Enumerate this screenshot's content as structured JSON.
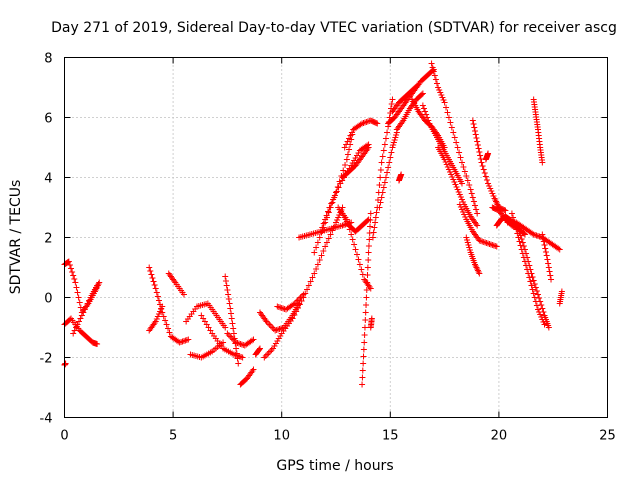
{
  "chart_data": {
    "type": "scatter",
    "title": "Day 271 of 2019, Sidereal Day-to-day VTEC variation (SDTVAR) for receiver ascg",
    "xlabel": "GPS time / hours",
    "ylabel": "SDTVAR / TECUs",
    "xlim": [
      0,
      25
    ],
    "ylim": [
      -4,
      8
    ],
    "xticks": [
      "0",
      "5",
      "10",
      "15",
      "20",
      "25"
    ],
    "yticks": [
      "-4",
      "-2",
      "0",
      "2",
      "4",
      "6",
      "8"
    ],
    "grid": true,
    "marker": "plus",
    "color": "#ff0000",
    "series": [
      {
        "name": "tr1",
        "x": [
          0.0,
          0.2,
          0.5,
          0.8,
          1.1,
          1.4,
          1.6
        ],
        "y": [
          1.1,
          1.2,
          0.5,
          -0.5,
          -0.2,
          0.2,
          0.5
        ]
      },
      {
        "name": "tr2",
        "x": [
          0.0,
          0.3,
          0.7,
          1.0,
          1.3,
          1.5
        ],
        "y": [
          -0.9,
          -0.7,
          -1.1,
          -1.3,
          -1.5,
          -1.55
        ]
      },
      {
        "name": "tr3",
        "x": [
          0.0,
          0.05
        ],
        "y": [
          -2.25,
          -2.2
        ]
      },
      {
        "name": "tr4",
        "x": [
          0.4,
          0.8,
          1.2,
          1.5
        ],
        "y": [
          -1.2,
          -0.6,
          0.0,
          0.4
        ]
      },
      {
        "name": "tr5",
        "x": [
          3.9,
          4.2,
          4.5,
          4.9,
          5.3,
          5.7
        ],
        "y": [
          1.0,
          0.3,
          -0.5,
          -1.3,
          -1.5,
          -1.4
        ]
      },
      {
        "name": "tr6",
        "x": [
          3.9,
          4.2,
          4.5
        ],
        "y": [
          -1.1,
          -0.8,
          -0.3
        ]
      },
      {
        "name": "tr7",
        "x": [
          4.8,
          5.1,
          5.5
        ],
        "y": [
          0.8,
          0.5,
          0.1
        ]
      },
      {
        "name": "tr8",
        "x": [
          5.6,
          6.1,
          6.6,
          7.0,
          7.4
        ],
        "y": [
          -0.8,
          -0.3,
          -0.2,
          -0.6,
          -1.0
        ]
      },
      {
        "name": "tr9",
        "x": [
          5.8,
          6.3,
          6.8,
          7.3
        ],
        "y": [
          -1.9,
          -2.0,
          -1.8,
          -1.5
        ]
      },
      {
        "name": "tr10",
        "x": [
          6.3,
          6.8,
          7.3,
          7.8,
          8.2
        ],
        "y": [
          -0.6,
          -1.2,
          -1.7,
          -1.9,
          -2.0
        ]
      },
      {
        "name": "tr11",
        "x": [
          7.4,
          7.6,
          7.8,
          8.0
        ],
        "y": [
          0.7,
          -0.2,
          -1.2,
          -2.2
        ]
      },
      {
        "name": "tr12",
        "x": [
          7.5,
          7.9,
          8.3,
          8.7
        ],
        "y": [
          -1.2,
          -1.5,
          -1.6,
          -1.4
        ]
      },
      {
        "name": "tr13",
        "x": [
          8.1,
          8.4,
          8.7
        ],
        "y": [
          -2.9,
          -2.7,
          -2.4
        ]
      },
      {
        "name": "tr14",
        "x": [
          8.8,
          9.0
        ],
        "y": [
          -1.9,
          -1.7
        ]
      },
      {
        "name": "tr15",
        "x": [
          9.0,
          9.3,
          9.7,
          10.1,
          10.5,
          10.8
        ],
        "y": [
          -0.5,
          -0.8,
          -1.1,
          -1.0,
          -0.6,
          -0.2
        ]
      },
      {
        "name": "tr16",
        "x": [
          9.2,
          9.6,
          10.0,
          10.5,
          11.0,
          11.5,
          12.0,
          12.5,
          12.8
        ],
        "y": [
          -2.0,
          -1.7,
          -1.2,
          -0.7,
          0.0,
          0.8,
          1.7,
          2.5,
          3.0
        ]
      },
      {
        "name": "tr17",
        "x": [
          9.8,
          10.2,
          10.6,
          11.0
        ],
        "y": [
          -0.3,
          -0.4,
          -0.2,
          0.1
        ]
      },
      {
        "name": "tr18",
        "x": [
          10.8,
          11.3,
          11.8,
          12.3,
          12.8,
          13.2
        ],
        "y": [
          2.0,
          2.1,
          2.2,
          2.3,
          2.4,
          2.5
        ]
      },
      {
        "name": "tr19",
        "x": [
          11.5,
          12.0,
          12.5,
          13.0,
          13.3
        ],
        "y": [
          1.5,
          2.5,
          3.5,
          4.6,
          5.6
        ]
      },
      {
        "name": "tr20",
        "x": [
          11.8,
          12.2,
          12.7,
          13.2,
          13.6,
          14.0
        ],
        "y": [
          2.2,
          3.0,
          3.8,
          4.4,
          4.9,
          5.1
        ]
      },
      {
        "name": "tr21",
        "x": [
          12.8,
          13.1,
          13.4,
          13.7,
          14.0
        ],
        "y": [
          4.0,
          4.2,
          4.4,
          4.7,
          5.0
        ]
      },
      {
        "name": "tr22",
        "x": [
          12.9,
          13.3,
          13.7,
          14.1,
          14.4
        ],
        "y": [
          5.0,
          5.6,
          5.8,
          5.9,
          5.8
        ]
      },
      {
        "name": "tr23",
        "x": [
          12.8,
          13.1,
          13.4,
          13.7,
          14.0
        ],
        "y": [
          2.8,
          2.4,
          2.2,
          2.4,
          2.6
        ]
      },
      {
        "name": "tr24",
        "x": [
          12.6,
          13.0,
          13.4,
          13.8,
          14.1
        ],
        "y": [
          3.0,
          2.6,
          1.6,
          0.6,
          0.3
        ]
      },
      {
        "name": "tr25",
        "x": [
          13.7,
          13.8,
          13.9,
          14.0,
          14.1
        ],
        "y": [
          -2.9,
          -1.5,
          0.0,
          1.5,
          2.8
        ]
      },
      {
        "name": "tr26",
        "x": [
          14.1,
          14.15
        ],
        "y": [
          -1.0,
          -0.7
        ]
      },
      {
        "name": "tr27",
        "x": [
          14.2,
          14.4,
          14.6,
          14.9,
          15.1
        ],
        "y": [
          2.0,
          3.0,
          4.5,
          5.7,
          6.6
        ]
      },
      {
        "name": "tr28",
        "x": [
          14.5,
          14.8,
          15.1,
          15.3
        ],
        "y": [
          3.0,
          4.0,
          5.0,
          5.5
        ]
      },
      {
        "name": "tr29",
        "x": [
          14.9,
          15.2,
          15.5,
          15.8,
          16.1,
          16.4,
          16.7,
          17.0
        ],
        "y": [
          5.8,
          6.0,
          6.3,
          6.6,
          6.9,
          7.2,
          7.4,
          7.6
        ]
      },
      {
        "name": "tr30",
        "x": [
          15.1,
          15.4,
          15.7,
          16.0,
          16.3
        ],
        "y": [
          6.2,
          6.5,
          6.7,
          6.9,
          7.1
        ]
      },
      {
        "name": "tr31",
        "x": [
          15.3,
          15.6,
          15.9,
          16.2,
          16.5
        ],
        "y": [
          5.6,
          5.9,
          6.3,
          6.6,
          6.8
        ]
      },
      {
        "name": "tr32",
        "x": [
          15.4,
          15.5
        ],
        "y": [
          3.9,
          4.1
        ]
      },
      {
        "name": "tr33",
        "x": [
          16.0,
          16.3,
          16.6,
          16.9,
          17.2,
          17.5
        ],
        "y": [
          6.6,
          6.2,
          5.9,
          5.7,
          5.4,
          5.0
        ]
      },
      {
        "name": "tr34",
        "x": [
          16.5,
          16.8,
          17.1,
          17.4,
          17.7,
          18.0,
          18.3
        ],
        "y": [
          6.4,
          5.8,
          5.4,
          5.0,
          4.6,
          4.2,
          3.8
        ]
      },
      {
        "name": "tr35",
        "x": [
          16.9,
          17.2,
          17.5,
          17.9,
          18.3,
          18.7,
          19.0
        ],
        "y": [
          7.8,
          7.0,
          6.5,
          5.5,
          4.5,
          3.6,
          2.8
        ]
      },
      {
        "name": "tr36",
        "x": [
          17.2,
          17.5,
          17.8,
          18.1,
          18.4,
          18.7,
          19.0
        ],
        "y": [
          5.0,
          4.6,
          4.1,
          3.6,
          3.1,
          2.7,
          2.4
        ]
      },
      {
        "name": "tr37",
        "x": [
          18.2,
          18.5,
          18.8,
          19.1,
          19.5,
          19.9
        ],
        "y": [
          3.1,
          2.6,
          2.2,
          1.9,
          1.8,
          1.7
        ]
      },
      {
        "name": "tr38",
        "x": [
          18.5,
          18.7,
          18.9,
          19.1
        ],
        "y": [
          2.0,
          1.5,
          1.1,
          0.8
        ]
      },
      {
        "name": "tr39",
        "x": [
          18.8,
          19.0,
          19.2,
          19.5,
          19.8,
          20.0,
          20.3
        ],
        "y": [
          5.9,
          5.2,
          4.5,
          3.8,
          3.3,
          3.0,
          2.9
        ]
      },
      {
        "name": "tr40",
        "x": [
          19.4,
          19.5
        ],
        "y": [
          4.6,
          4.8
        ]
      },
      {
        "name": "tr41",
        "x": [
          19.7,
          20.0,
          20.3,
          20.6,
          20.9,
          21.2
        ],
        "y": [
          3.0,
          2.9,
          2.6,
          2.4,
          2.3,
          2.1
        ]
      },
      {
        "name": "tr42",
        "x": [
          19.9,
          20.1,
          20.3,
          20.5,
          20.8
        ],
        "y": [
          2.4,
          2.6,
          2.7,
          2.6,
          2.4
        ]
      },
      {
        "name": "tr43",
        "x": [
          20.4,
          20.8,
          21.2,
          21.6,
          22.0,
          22.4,
          22.8
        ],
        "y": [
          2.5,
          2.5,
          2.3,
          2.1,
          2.0,
          1.8,
          1.6
        ]
      },
      {
        "name": "tr44",
        "x": [
          20.6,
          20.9,
          21.2,
          21.5,
          21.8,
          22.1
        ],
        "y": [
          2.8,
          2.0,
          1.2,
          0.4,
          -0.4,
          -0.9
        ]
      },
      {
        "name": "tr45",
        "x": [
          20.9,
          21.2,
          21.5,
          21.8,
          22.1,
          22.3
        ],
        "y": [
          2.3,
          1.6,
          0.8,
          0.1,
          -0.6,
          -1.0
        ]
      },
      {
        "name": "tr46",
        "x": [
          21.6,
          21.7,
          21.8,
          21.9,
          22.0
        ],
        "y": [
          6.6,
          6.1,
          5.6,
          5.0,
          4.5
        ]
      },
      {
        "name": "tr47",
        "x": [
          22.0,
          22.2,
          22.4
        ],
        "y": [
          2.1,
          1.4,
          0.6
        ]
      },
      {
        "name": "tr48",
        "x": [
          22.8,
          22.9
        ],
        "y": [
          -0.2,
          0.2
        ]
      }
    ]
  }
}
